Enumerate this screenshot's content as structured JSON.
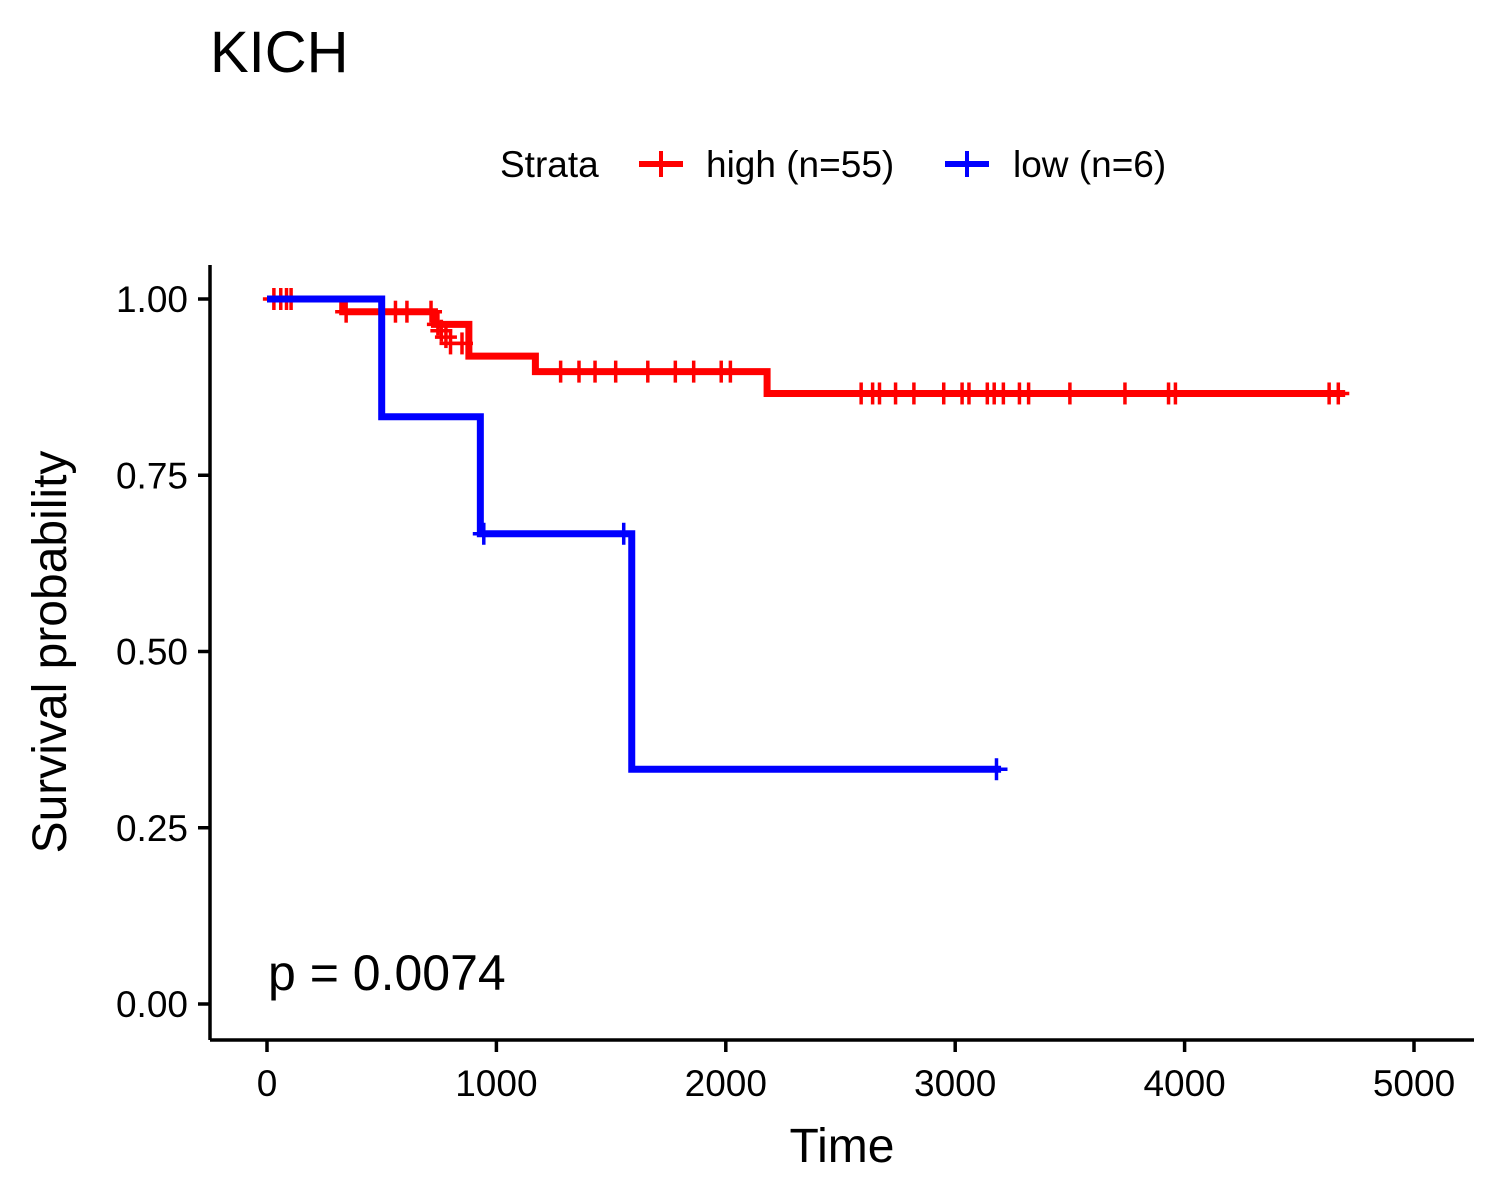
{
  "chart_data": {
    "type": "line",
    "subtype": "kaplan-meier",
    "title": "KICH",
    "xlabel": "Time",
    "ylabel": "Survival probability",
    "xlim": [
      -250,
      5250
    ],
    "ylim": [
      -0.05,
      1.05
    ],
    "x_ticks": [
      0,
      1000,
      2000,
      3000,
      4000,
      5000
    ],
    "x_tick_labels": [
      "0",
      "1000",
      "2000",
      "3000",
      "4000",
      "5000"
    ],
    "y_ticks": [
      0,
      0.25,
      0.5,
      0.75,
      1.0
    ],
    "y_tick_labels": [
      "0.00",
      "0.25",
      "0.50",
      "0.75",
      "1.00"
    ],
    "grid": false,
    "legend": {
      "title": "Strata",
      "position": "top",
      "entries": [
        "high (n=55)",
        "low (n=6)"
      ]
    },
    "annotation": "p = 0.0074",
    "series": [
      {
        "name": "high (n=55)",
        "color": "#ff0000",
        "steps": [
          [
            0,
            1.0
          ],
          [
            330,
            0.982
          ],
          [
            730,
            0.964
          ],
          [
            880,
            0.919
          ],
          [
            1170,
            0.897
          ],
          [
            2180,
            0.866
          ],
          [
            4700,
            0.866
          ]
        ],
        "censored": [
          [
            30,
            1.0
          ],
          [
            60,
            1.0
          ],
          [
            85,
            1.0
          ],
          [
            105,
            1.0
          ],
          [
            345,
            0.982
          ],
          [
            560,
            0.982
          ],
          [
            610,
            0.982
          ],
          [
            715,
            0.982
          ],
          [
            745,
            0.964
          ],
          [
            760,
            0.955
          ],
          [
            780,
            0.946
          ],
          [
            800,
            0.937
          ],
          [
            850,
            0.937
          ],
          [
            1280,
            0.897
          ],
          [
            1360,
            0.897
          ],
          [
            1430,
            0.897
          ],
          [
            1520,
            0.897
          ],
          [
            1660,
            0.897
          ],
          [
            1780,
            0.897
          ],
          [
            1860,
            0.897
          ],
          [
            1980,
            0.897
          ],
          [
            2020,
            0.897
          ],
          [
            2590,
            0.866
          ],
          [
            2640,
            0.866
          ],
          [
            2670,
            0.866
          ],
          [
            2740,
            0.866
          ],
          [
            2820,
            0.866
          ],
          [
            2950,
            0.866
          ],
          [
            3030,
            0.866
          ],
          [
            3060,
            0.866
          ],
          [
            3140,
            0.866
          ],
          [
            3170,
            0.866
          ],
          [
            3210,
            0.866
          ],
          [
            3280,
            0.866
          ],
          [
            3320,
            0.866
          ],
          [
            3500,
            0.866
          ],
          [
            3740,
            0.866
          ],
          [
            3930,
            0.866
          ],
          [
            3960,
            0.866
          ],
          [
            4630,
            0.866
          ],
          [
            4670,
            0.866
          ]
        ]
      },
      {
        "name": "low (n=6)",
        "color": "#0000ff",
        "steps": [
          [
            0,
            1.0
          ],
          [
            500,
            0.833
          ],
          [
            930,
            0.667
          ],
          [
            1590,
            0.333
          ],
          [
            3200,
            0.333
          ]
        ],
        "censored": [
          [
            945,
            0.667
          ],
          [
            1555,
            0.667
          ],
          [
            3180,
            0.333
          ]
        ]
      }
    ]
  }
}
